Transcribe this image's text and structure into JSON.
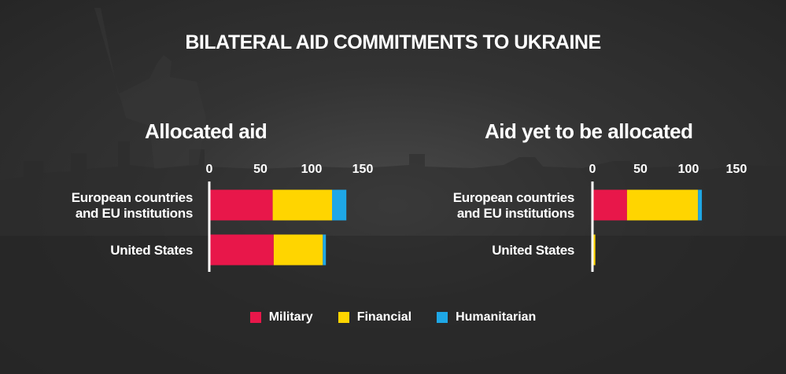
{
  "title": "BILATERAL AID COMMITMENTS TO UKRAINE",
  "colors": {
    "military": "#e8174a",
    "financial": "#ffd500",
    "humanitarian": "#1ea7e6"
  },
  "legend": [
    {
      "label": "Military",
      "color": "#e8174a"
    },
    {
      "label": "Financial",
      "color": "#ffd500"
    },
    {
      "label": "Humanitarian",
      "color": "#1ea7e6"
    }
  ],
  "chart_data": [
    {
      "type": "bar",
      "orientation": "horizontal",
      "stacked": true,
      "title": "Allocated aid",
      "categories": [
        "European countries\nand EU institutions",
        "United States"
      ],
      "series": [
        {
          "name": "Military",
          "values": [
            62,
            63
          ]
        },
        {
          "name": "Financial",
          "values": [
            58,
            48
          ]
        },
        {
          "name": "Humanitarian",
          "values": [
            14,
            3
          ]
        }
      ],
      "ticks": [
        0,
        50,
        100,
        150
      ],
      "xlim": [
        0,
        150
      ],
      "legend_position": "bottom-center"
    },
    {
      "type": "bar",
      "orientation": "horizontal",
      "stacked": true,
      "title": "Aid yet to be allocated",
      "categories": [
        "European countries\nand EU institutions",
        "United States"
      ],
      "series": [
        {
          "name": "Military",
          "values": [
            36,
            0
          ]
        },
        {
          "name": "Financial",
          "values": [
            74,
            3
          ]
        },
        {
          "name": "Humanitarian",
          "values": [
            4,
            0
          ]
        }
      ],
      "ticks": [
        0,
        50,
        100,
        150
      ],
      "xlim": [
        0,
        150
      ],
      "legend_position": "bottom-center"
    }
  ]
}
